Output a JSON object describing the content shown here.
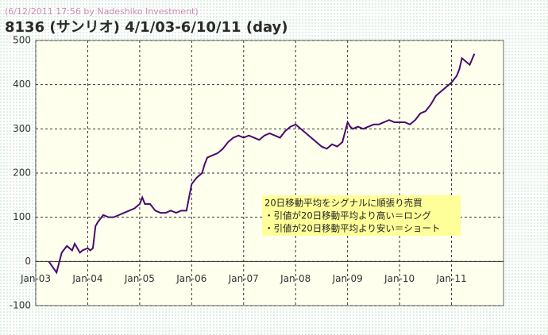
{
  "chart_data": {
    "type": "line",
    "timestamp": "(6/12/2011 17:56 by Nadeshiko Investment)",
    "title": "8136 (サンリオ)  4/1/03-6/10/11 (day)",
    "annotations": [
      "20日移動平均をシグナルに順張り売買",
      "・引値が20日移動平均より高い＝ロング",
      "・引値が20日移動平均より安い＝ショート"
    ],
    "color": "#4b0a6b",
    "grid": true,
    "xlim": [
      2003,
      2012
    ],
    "xticks": [
      {
        "value": 2003,
        "label": "Jan-03"
      },
      {
        "value": 2004,
        "label": "Jan-04"
      },
      {
        "value": 2005,
        "label": "Jan-05"
      },
      {
        "value": 2006,
        "label": "Jan-06"
      },
      {
        "value": 2007,
        "label": "Jan-07"
      },
      {
        "value": 2008,
        "label": "Jan-08"
      },
      {
        "value": 2009,
        "label": "Jan-09"
      },
      {
        "value": 2010,
        "label": "Jan-10"
      },
      {
        "value": 2011,
        "label": "Jan-11"
      }
    ],
    "ylim": [
      -100,
      500
    ],
    "yticks": [
      -100,
      0,
      100,
      200,
      300,
      400,
      500
    ],
    "x": [
      2003.25,
      2003.4,
      2003.5,
      2003.6,
      2003.7,
      2003.75,
      2003.85,
      2003.9,
      2004.0,
      2004.05,
      2004.1,
      2004.15,
      2004.2,
      2004.3,
      2004.4,
      2004.5,
      2004.6,
      2004.7,
      2004.8,
      2004.9,
      2005.0,
      2005.05,
      2005.1,
      2005.2,
      2005.3,
      2005.4,
      2005.5,
      2005.6,
      2005.7,
      2005.8,
      2005.9,
      2006.0,
      2006.1,
      2006.2,
      2006.25,
      2006.3,
      2006.4,
      2006.5,
      2006.6,
      2006.7,
      2006.8,
      2006.9,
      2007.0,
      2007.1,
      2007.2,
      2007.3,
      2007.4,
      2007.5,
      2007.6,
      2007.7,
      2007.8,
      2007.9,
      2008.0,
      2008.1,
      2008.2,
      2008.3,
      2008.4,
      2008.5,
      2008.6,
      2008.7,
      2008.8,
      2008.9,
      2009.0,
      2009.05,
      2009.1,
      2009.2,
      2009.3,
      2009.4,
      2009.5,
      2009.6,
      2009.7,
      2009.8,
      2009.9,
      2010.0,
      2010.1,
      2010.2,
      2010.3,
      2010.4,
      2010.5,
      2010.6,
      2010.7,
      2010.8,
      2010.9,
      2011.0,
      2011.1,
      2011.15,
      2011.2,
      2011.3,
      2011.35,
      2011.44
    ],
    "values": [
      0,
      -25,
      20,
      35,
      25,
      40,
      20,
      25,
      30,
      25,
      30,
      80,
      90,
      105,
      100,
      100,
      105,
      110,
      115,
      120,
      130,
      145,
      130,
      130,
      115,
      110,
      110,
      115,
      110,
      115,
      115,
      175,
      190,
      200,
      220,
      235,
      240,
      245,
      255,
      270,
      280,
      285,
      280,
      285,
      280,
      275,
      285,
      290,
      285,
      280,
      295,
      305,
      310,
      300,
      290,
      280,
      270,
      260,
      255,
      265,
      260,
      270,
      315,
      305,
      300,
      305,
      300,
      305,
      310,
      310,
      315,
      320,
      315,
      315,
      315,
      310,
      320,
      335,
      340,
      355,
      375,
      385,
      395,
      405,
      420,
      435,
      460,
      450,
      445,
      470
    ]
  }
}
